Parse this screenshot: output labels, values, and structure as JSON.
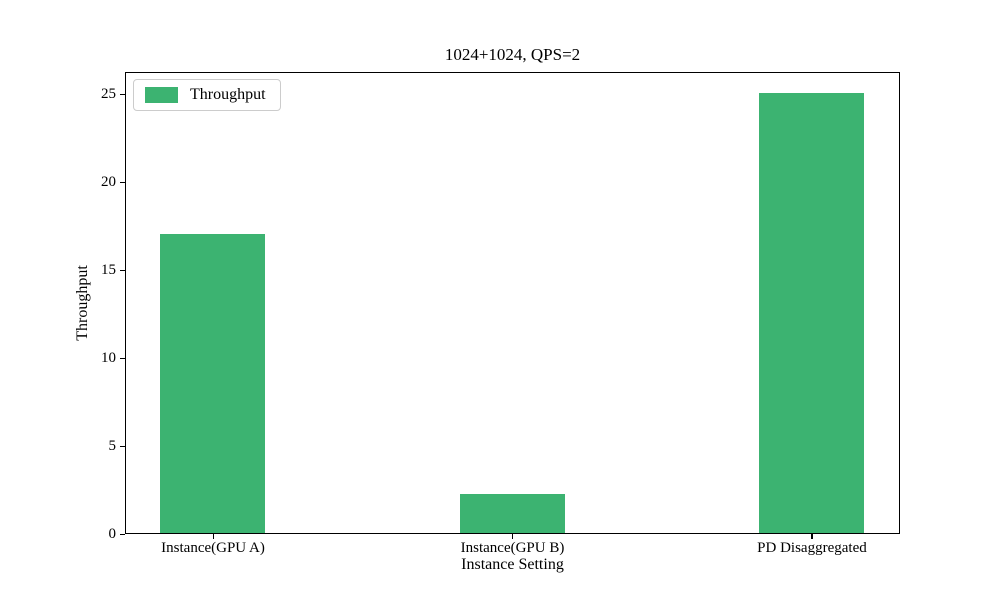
{
  "chart_data": {
    "type": "bar",
    "title": "1024+1024, QPS=2",
    "xlabel": "Instance Setting",
    "ylabel": "Throughput",
    "categories": [
      "Instance(GPU A)",
      "Instance(GPU B)",
      "PD Disaggregated"
    ],
    "series": [
      {
        "name": "Throughput",
        "color": "#3cb371",
        "values": [
          17,
          2.2,
          25
        ]
      }
    ],
    "ylim": [
      0,
      26.25
    ],
    "yticks": [
      0,
      5,
      10,
      15,
      20,
      25
    ],
    "grid": false,
    "legend": {
      "position": "upper-left",
      "label": "Throughput",
      "swatch_color": "#3cb371"
    },
    "bar_width_frac": 0.35,
    "background": "#ffffff",
    "spine_color": "#000000"
  }
}
